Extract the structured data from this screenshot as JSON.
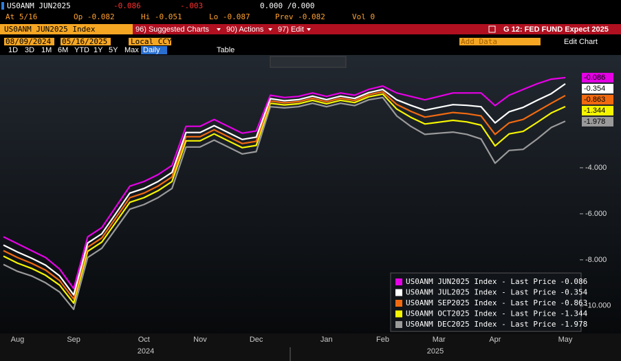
{
  "header": {
    "ticker": "US0ANM JUN2025",
    "last": "-0.086",
    "change": "-.003",
    "bid_ask": "0.000 /0.000",
    "at": "At 5/16",
    "open": "Op -0.082",
    "high": "Hi -0.051",
    "low": "Lo -0.087",
    "prev": "Prev -0.082",
    "volume": "Vol 0"
  },
  "toolbar": {
    "security": "US0ANM JUN2025 Index",
    "menus": [
      "96) Suggested Charts",
      "90) Actions",
      "97) Edit"
    ],
    "chart_name": "G 12: FED FUND Expect 2025",
    "start_date": "08/09/2024",
    "end_date": "05/16/2025",
    "currency": "Local CCY",
    "add_data": "Add Data",
    "edit_chart": "Edit Chart",
    "periods": [
      "1D",
      "3D",
      "1M",
      "6M",
      "YTD",
      "1Y",
      "5Y",
      "Max"
    ],
    "frequency": "Daily",
    "table": "Table"
  },
  "chart_data": {
    "type": "line",
    "categories": [
      null,
      "Aug",
      null,
      null,
      null,
      "Sep",
      null,
      null,
      null,
      null,
      "Oct",
      null,
      null,
      null,
      "Nov",
      null,
      null,
      null,
      "Dec",
      null,
      null,
      null,
      null,
      "Jan",
      null,
      null,
      null,
      "Feb",
      null,
      null,
      null,
      "Mar",
      null,
      null,
      null,
      "Apr",
      null,
      null,
      null,
      null,
      "May"
    ],
    "year_labels": [
      "2024",
      "2025"
    ],
    "series": [
      {
        "name": "US0ANM JUN2025 Index - Last Price",
        "color": "#e600e6",
        "values": [
          -7.0,
          -7.3,
          -7.6,
          -7.9,
          -8.4,
          -9.25,
          -7.0,
          -6.6,
          -5.7,
          -4.8,
          -4.6,
          -4.3,
          -3.9,
          -2.2,
          -2.2,
          -1.9,
          -2.2,
          -2.5,
          -2.4,
          -0.85,
          -0.95,
          -0.9,
          -0.75,
          -0.9,
          -0.75,
          -0.85,
          -0.6,
          -0.45,
          -0.75,
          -0.9,
          -1.05,
          -0.9,
          -0.75,
          -0.75,
          -0.75,
          -1.3,
          -0.85,
          -0.6,
          -0.35,
          -0.15,
          -0.086
        ]
      },
      {
        "name": "US0ANM JUL2025 Index - Last Price",
        "color": "#ffffff",
        "values": [
          -7.36,
          -7.66,
          -7.93,
          -8.23,
          -8.7,
          -9.52,
          -7.27,
          -6.87,
          -5.99,
          -5.1,
          -4.9,
          -4.6,
          -4.2,
          -2.47,
          -2.47,
          -2.17,
          -2.47,
          -2.77,
          -2.67,
          -1.0,
          -1.09,
          -1.04,
          -0.89,
          -1.04,
          -0.89,
          -0.99,
          -0.74,
          -0.6,
          -1.05,
          -1.29,
          -1.5,
          -1.38,
          -1.26,
          -1.29,
          -1.35,
          -2.05,
          -1.57,
          -1.38,
          -1.07,
          -0.78,
          -0.354
        ]
      },
      {
        "name": "US0ANM SEP2025 Index - Last Price",
        "color": "#f26a10",
        "values": [
          -7.6,
          -7.9,
          -8.15,
          -8.45,
          -8.9,
          -9.7,
          -7.45,
          -7.05,
          -6.18,
          -5.3,
          -5.1,
          -4.8,
          -4.4,
          -2.65,
          -2.65,
          -2.35,
          -2.65,
          -2.95,
          -2.85,
          -1.1,
          -1.18,
          -1.13,
          -0.98,
          -1.13,
          -0.98,
          -1.08,
          -0.83,
          -0.7,
          -1.25,
          -1.55,
          -1.8,
          -1.7,
          -1.6,
          -1.65,
          -1.75,
          -2.55,
          -2.05,
          -1.9,
          -1.55,
          -1.2,
          -0.863
        ]
      },
      {
        "name": "US0ANM OCT2025 Index - Last Price",
        "color": "#f5f500",
        "values": [
          -7.84,
          -8.14,
          -8.37,
          -8.67,
          -9.1,
          -9.88,
          -7.63,
          -7.23,
          -6.37,
          -5.5,
          -5.3,
          -5.0,
          -4.6,
          -2.83,
          -2.83,
          -2.53,
          -2.83,
          -3.13,
          -3.03,
          -1.2,
          -1.27,
          -1.22,
          -1.07,
          -1.22,
          -1.07,
          -1.17,
          -0.92,
          -0.8,
          -1.45,
          -1.81,
          -2.1,
          -2.02,
          -1.94,
          -2.01,
          -2.15,
          -3.05,
          -2.53,
          -2.42,
          -2.03,
          -1.62,
          -1.344
        ]
      },
      {
        "name": "US0ANM DEC2025 Index - Last Price",
        "color": "#9a9a9a",
        "values": [
          -8.2,
          -8.5,
          -8.7,
          -9.0,
          -9.4,
          -10.15,
          -7.9,
          -7.5,
          -6.65,
          -5.8,
          -5.6,
          -5.3,
          -4.9,
          -3.1,
          -3.1,
          -2.8,
          -3.1,
          -3.4,
          -3.3,
          -1.35,
          -1.4,
          -1.35,
          -1.2,
          -1.35,
          -1.2,
          -1.3,
          -1.05,
          -0.95,
          -1.75,
          -2.2,
          -2.55,
          -2.5,
          -2.45,
          -2.55,
          -2.75,
          -3.8,
          -3.25,
          -3.2,
          -2.75,
          -2.25,
          -1.978
        ]
      }
    ],
    "ylim": [
      -11.2,
      0.3
    ],
    "yticks": [
      {
        "value": -10,
        "label": "-10.000"
      },
      {
        "value": -8,
        "label": "-8.000"
      },
      {
        "value": -6,
        "label": "-6.000"
      },
      {
        "value": -4,
        "label": "-4.000"
      }
    ],
    "grid": false,
    "legend": "bottom-right"
  }
}
